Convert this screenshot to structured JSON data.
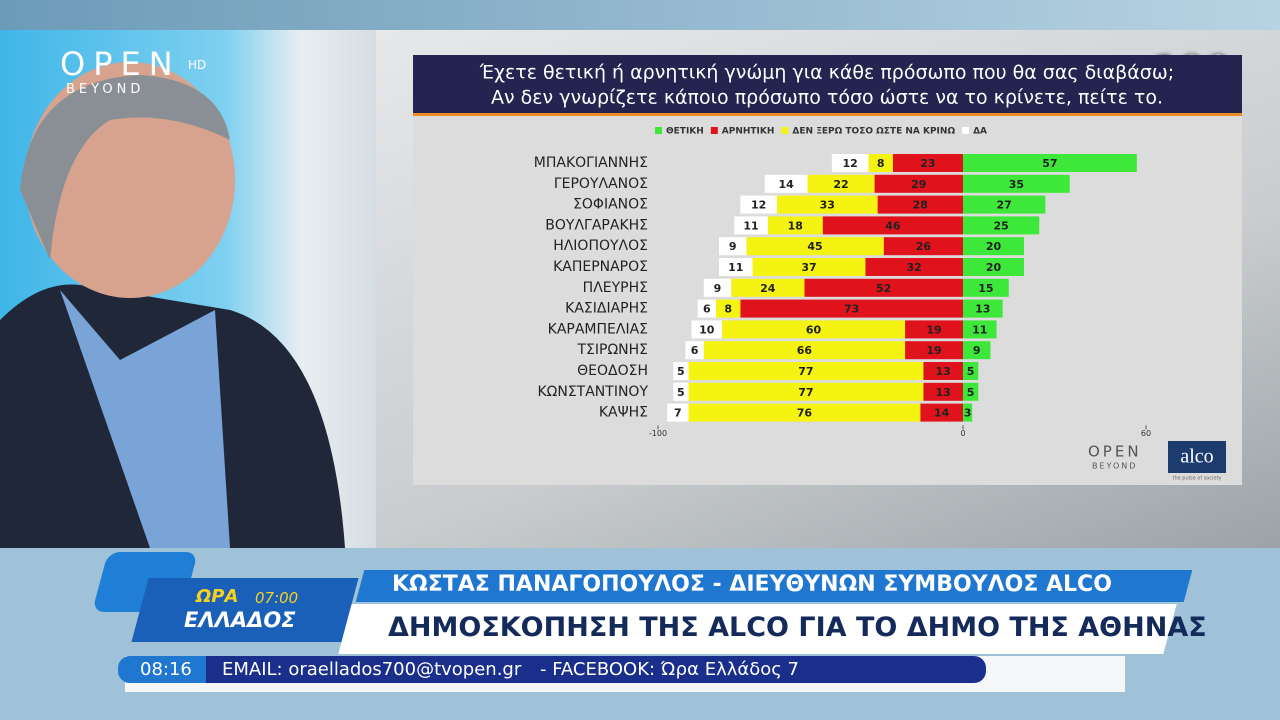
{
  "logo": {
    "brand": "OPEN",
    "tag": "HD",
    "sub": "BEYOND"
  },
  "badge": "100",
  "chart_data": {
    "type": "diverging-bar",
    "title_lines": [
      "Έχετε θετική ή αρνητική γνώμη για κάθε πρόσωπο που θα σας διαβάσω;",
      "Αν δεν γνωρίζετε κάποιο πρόσωπο τόσο ώστε να το κρίνετε, πείτε το."
    ],
    "categories": [
      "ΜΠΑΚΟΓΙΑΝΝΗΣ",
      "ΓΕΡΟΥΛΑΝΟΣ",
      "ΣΟΦΙΑΝΟΣ",
      "ΒΟΥΛΓΑΡΑΚΗΣ",
      "ΗΛΙΟΠΟΥΛΟΣ",
      "ΚΑΠΕΡΝΑΡΟΣ",
      "ΠΛΕΥΡΗΣ",
      "ΚΑΣΙΔΙΑΡΗΣ",
      "ΚΑΡΑΜΠΕΛΙΑΣ",
      "ΤΣΙΡΩΝΗΣ",
      "ΘΕΟΔΟΣΗ",
      "ΚΩΝΣΤΑΝΤΙΝΟΥ",
      "ΚΑΨΗΣ"
    ],
    "series": [
      {
        "name": "ΘΕΤΙΚΗ",
        "color": "#3ee83a",
        "values": [
          57,
          35,
          27,
          25,
          20,
          20,
          15,
          13,
          11,
          9,
          5,
          5,
          3
        ]
      },
      {
        "name": "ΑΡΝΗΤΙΚΗ",
        "color": "#e0121b",
        "values": [
          -23,
          -29,
          -28,
          -46,
          -26,
          -32,
          -52,
          -73,
          -19,
          -19,
          -13,
          -13,
          -14
        ],
        "value_labels": [
          "23",
          "29",
          "28",
          "46",
          "26",
          "32",
          "52",
          "73",
          "19",
          "19",
          "13",
          "13",
          "14"
        ]
      },
      {
        "name": "ΔΕΝ ΞΕΡΩ ΤΟΣΟ ΩΣΤΕ ΝΑ ΚΡΙΝΩ",
        "color": "#f5f312",
        "values": [
          -8,
          -22,
          -33,
          -18,
          -45,
          -37,
          -24,
          -8,
          -60,
          -66,
          -77,
          -77,
          -76
        ],
        "value_labels": [
          "8",
          "22",
          "33",
          "18",
          "45",
          "37",
          "24",
          "8",
          "60",
          "66",
          "77",
          "77",
          "76"
        ]
      },
      {
        "name": "ΔΑ",
        "color": "#ffffff",
        "values": [
          -12,
          -14,
          -12,
          -11,
          -9,
          -11,
          -9,
          -6,
          -10,
          -6,
          -5,
          -5,
          -7
        ],
        "value_labels": [
          "12",
          "14",
          "12",
          "11",
          "9",
          "11",
          "9",
          "6",
          "10",
          "6",
          "5",
          "5",
          "7"
        ]
      }
    ],
    "xlim": [
      -100,
      60
    ],
    "xticks": [
      -100,
      0,
      60
    ]
  },
  "chart_logos": {
    "open": "OPEN",
    "open_sub": "BEYOND",
    "alco": "alco",
    "alco_tag": "the pulse of society"
  },
  "show": {
    "name": "ΩΡΑ",
    "time": "07:00",
    "name2": "ΕΛΛΑΔΟΣ"
  },
  "lower_third": {
    "speaker": "ΚΩΣΤΑΣ ΠΑΝΑΓΟΠΟΥΛΟΣ - ΔΙΕΥΘΥΝΩΝ ΣΥΜΒΟΥΛΟΣ ALCO",
    "headline": "ΔΗΜΟΣΚΟΠΗΣΗ ΤΗΣ ALCO ΓΙΑ ΤΟ ΔΗΜΟ ΤΗΣ ΑΘΗΝΑΣ",
    "clock": "08:16",
    "email": "EMAIL: oraellados700@tvopen.gr",
    "facebook": "- FACEBOOK: Ώρα Ελλάδος 7"
  }
}
